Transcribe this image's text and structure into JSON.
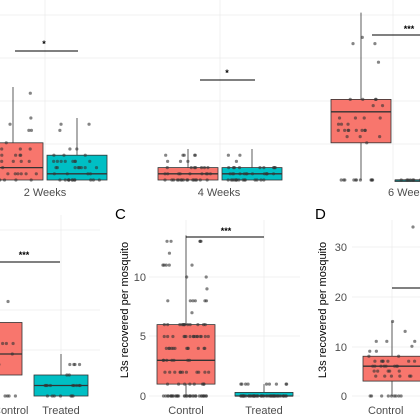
{
  "chart_data": [
    {
      "type": "box",
      "panel": "A",
      "categories": [
        "2 Weeks",
        "4 Weeks",
        "6 Weeks"
      ],
      "series": [
        {
          "boxes": [
            {
              "category": "2 Weeks",
              "min": 0,
              "q1": 0,
              "median": 2,
              "q3": 6,
              "max": 15
            },
            {
              "category": "4 Weeks",
              "min": 0,
              "q1": 0,
              "median": 1,
              "q3": 2,
              "max": 5
            },
            {
              "category": "6 Weeks",
              "min": 0,
              "q1": 6,
              "median": 11,
              "q3": 13,
              "max": 27
            }
          ],
          "color": "#f8766d"
        },
        {
          "boxes": [
            {
              "category": "2 Weeks",
              "min": 0,
              "q1": 0,
              "median": 1,
              "q3": 4,
              "max": 10
            },
            {
              "category": "4 Weeks",
              "min": 0,
              "q1": 0,
              "median": 1,
              "q3": 2,
              "max": 5
            },
            {
              "category": "6 Weeks",
              "min": 0,
              "q1": 0,
              "median": 0,
              "q3": 0,
              "max": 0
            }
          ],
          "color": "#00bfc4"
        }
      ],
      "significance": [
        {
          "category": "2 Weeks",
          "label": "*"
        },
        {
          "category": "4 Weeks",
          "label": "*"
        },
        {
          "category": "6 Weeks",
          "label": "***"
        }
      ]
    },
    {
      "type": "box",
      "panel": "B",
      "categories": [
        "Control",
        "Treated"
      ],
      "boxes": [
        {
          "category": "Control",
          "min": 0,
          "q1": 2,
          "median": 4,
          "q3": 7,
          "max": 10,
          "color": "#f8766d"
        },
        {
          "category": "Treated",
          "min": 0,
          "q1": 0,
          "median": 1,
          "q3": 2,
          "max": 4,
          "color": "#00bfc4"
        }
      ],
      "significance": [
        {
          "label": "***"
        }
      ]
    },
    {
      "type": "box",
      "panel": "C",
      "ylabel": "L3s recovered per mosquito",
      "categories": [
        "Control",
        "Treated"
      ],
      "yticks": [
        0,
        5,
        10
      ],
      "ylim": [
        -0.6,
        14.5
      ],
      "boxes": [
        {
          "category": "Control",
          "min": 0,
          "q1": 1,
          "median": 3,
          "q3": 6,
          "max": 13.5,
          "color": "#f8766d"
        },
        {
          "category": "Treated",
          "min": 0,
          "q1": 0,
          "median": 0,
          "q3": 0.3,
          "max": 1,
          "color": "#00bfc4"
        }
      ],
      "significance": [
        {
          "label": "***"
        }
      ]
    },
    {
      "type": "box",
      "panel": "D",
      "ylabel": "L3s recovered per mosquito",
      "categories": [
        "Control"
      ],
      "yticks": [
        0,
        10,
        20,
        30
      ],
      "ylim": [
        -1.2,
        35
      ],
      "boxes": [
        {
          "category": "Control",
          "min": 0,
          "q1": 3,
          "median": 6,
          "q3": 8,
          "max": 15,
          "color": "#f8766d"
        }
      ],
      "significance": [
        {
          "label": "***"
        }
      ]
    }
  ],
  "labels": {
    "panel_a": {
      "x_labels": [
        "2 Weeks",
        "4 Weeks",
        "6 Weeks"
      ],
      "sig": [
        "*",
        "*",
        "***"
      ]
    },
    "panel_b": {
      "x_labels": [
        "Control",
        "Treated"
      ],
      "sig": "***"
    },
    "panel_c": {
      "letter": "C",
      "ylabel": "L3s recovered per mosquito",
      "yticks": [
        "0",
        "5",
        "10"
      ],
      "x_labels": [
        "Control",
        "Treated"
      ],
      "sig": "***"
    },
    "panel_d": {
      "letter": "D",
      "ylabel": "L3s recovered per mosquito",
      "yticks": [
        "0",
        "10",
        "20",
        "30"
      ],
      "x_labels": [
        "Control"
      ],
      "sig": "***"
    }
  },
  "colors": {
    "control": "#f8766d",
    "treated": "#00bfc4",
    "points": "#333333"
  }
}
